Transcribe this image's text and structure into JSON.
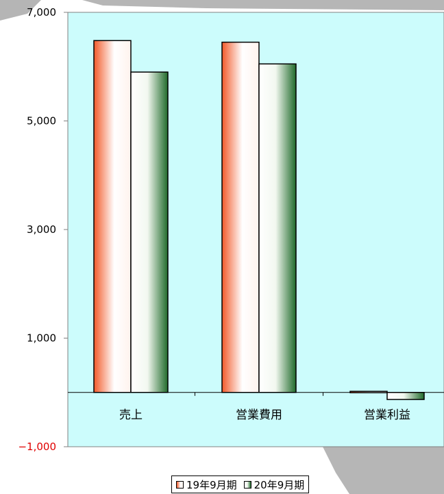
{
  "chart_data": {
    "type": "bar",
    "title": "",
    "xlabel": "",
    "ylabel": "",
    "categories": [
      "売上",
      "営業費用",
      "営業利益"
    ],
    "series": [
      {
        "name": "19年9月期",
        "values": [
          6480,
          6450,
          20
        ],
        "color": "#f26a3d"
      },
      {
        "name": "20年9月期",
        "values": [
          5900,
          6050,
          -130
        ],
        "color": "#2f7a3a"
      }
    ],
    "ylim": [
      -1000,
      7000
    ],
    "yticks": [
      7000,
      5000,
      3000,
      1000,
      -1000
    ],
    "ytick_labels": [
      "7,000",
      "5,000",
      "3,000",
      "1,000",
      "−1,000"
    ],
    "grid": false,
    "plot_background": "#ccfcfc",
    "legend_position": "bottom"
  }
}
